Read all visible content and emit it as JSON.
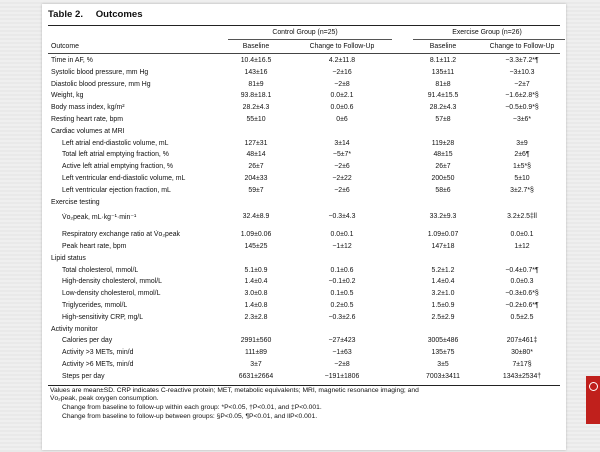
{
  "table": {
    "label": "Table 2.",
    "name": "Outcomes",
    "group_headers": [
      "Control Group (n=25)",
      "Exercise Group (n=26)"
    ],
    "column_headers": [
      "Outcome",
      "Baseline",
      "Change to Follow-Up",
      "Baseline",
      "Change to Follow-Up"
    ],
    "rows": [
      {
        "label": "Time in AF, %",
        "ind": false,
        "cells": [
          "10.4±16.5",
          "4.2±11.8",
          "8.1±11.2",
          "−3.3±7.2*¶"
        ]
      },
      {
        "label": "Systolic blood pressure, mm Hg",
        "ind": false,
        "cells": [
          "143±16",
          "−2±16",
          "135±11",
          "−3±10.3"
        ]
      },
      {
        "label": "Diastolic blood pressure, mm Hg",
        "ind": false,
        "cells": [
          "81±9",
          "−2±8",
          "81±8",
          "−2±7"
        ]
      },
      {
        "label": "Weight, kg",
        "ind": false,
        "cells": [
          "93.8±18.1",
          "0.0±2.1",
          "91.4±15.5",
          "−1.6±2.8*§"
        ]
      },
      {
        "label": "Body mass index, kg/m²",
        "ind": false,
        "cells": [
          "28.2±4.3",
          "0.0±0.6",
          "28.2±4.3",
          "−0.5±0.9*§"
        ]
      },
      {
        "label": "Resting heart rate, bpm",
        "ind": false,
        "cells": [
          "55±10",
          "0±6",
          "57±8",
          "−3±6*"
        ]
      },
      {
        "label": "Cardiac volumes at MRI",
        "ind": false,
        "cells": [
          "",
          "",
          "",
          ""
        ]
      },
      {
        "label": "Left atrial end-diastolic volume, mL",
        "ind": true,
        "cells": [
          "127±31",
          "3±14",
          "119±28",
          "3±9"
        ]
      },
      {
        "label": "Total left atrial emptying fraction, %",
        "ind": true,
        "cells": [
          "48±14",
          "−5±7*",
          "48±15",
          "2±6¶"
        ]
      },
      {
        "label": "Active left atrial emptying fraction, %",
        "ind": true,
        "cells": [
          "26±7",
          "−2±6",
          "26±7",
          "1±5*§"
        ]
      },
      {
        "label": "Left ventricular end-diastolic volume, mL",
        "ind": true,
        "cells": [
          "204±33",
          "−2±22",
          "200±50",
          "5±10"
        ]
      },
      {
        "label": "Left ventricular ejection fraction, mL",
        "ind": true,
        "cells": [
          "59±7",
          "−2±6",
          "58±6",
          "3±2.7*§"
        ]
      },
      {
        "label": "Exercise testing",
        "ind": false,
        "cells": [
          "",
          "",
          "",
          ""
        ]
      },
      {
        "label": "V̇o₂peak, mL·kg⁻¹·min⁻¹",
        "ind": true,
        "cells": [
          "32.4±8.9",
          "−0.3±4.3",
          "33.2±9.3",
          "3.2±2.5‡ll"
        ]
      },
      {
        "label": "Respiratory exchange ratio at V̇o₂peak",
        "ind": true,
        "cells": [
          "1.09±0.06",
          "0.0±0.1",
          "1.09±0.07",
          "0.0±0.1"
        ]
      },
      {
        "label": "Peak heart rate, bpm",
        "ind": true,
        "cells": [
          "145±25",
          "−1±12",
          "147±18",
          "1±12"
        ]
      },
      {
        "label": "Lipid status",
        "ind": false,
        "cells": [
          "",
          "",
          "",
          ""
        ]
      },
      {
        "label": "Total cholesterol, mmol/L",
        "ind": true,
        "cells": [
          "5.1±0.9",
          "0.1±0.6",
          "5.2±1.2",
          "−0.4±0.7*¶"
        ]
      },
      {
        "label": "High-density cholesterol, mmol/L",
        "ind": true,
        "cells": [
          "1.4±0.4",
          "−0.1±0.2",
          "1.4±0.4",
          "0.0±0.3"
        ]
      },
      {
        "label": "Low-density cholesterol, mmol/L",
        "ind": true,
        "cells": [
          "3.0±0.8",
          "0.1±0.5",
          "3.2±1.0",
          "−0.3±0.6*§"
        ]
      },
      {
        "label": "Triglycerides, mmol/L",
        "ind": true,
        "cells": [
          "1.4±0.8",
          "0.2±0.5",
          "1.5±0.9",
          "−0.2±0.6*¶"
        ]
      },
      {
        "label": "High-sensitivity CRP, mg/L",
        "ind": true,
        "cells": [
          "2.3±2.8",
          "−0.3±2.6",
          "2.5±2.9",
          "0.5±2.5"
        ]
      },
      {
        "label": "Activity monitor",
        "ind": false,
        "cells": [
          "",
          "",
          "",
          ""
        ]
      },
      {
        "label": "Calories per day",
        "ind": true,
        "cells": [
          "2991±560",
          "−27±423",
          "3005±486",
          "207±461‡"
        ]
      },
      {
        "label": "Activity >3 METs, min/d",
        "ind": true,
        "cells": [
          "111±89",
          "−1±63",
          "135±75",
          "30±80*"
        ]
      },
      {
        "label": "Activity >6 METs, min/d",
        "ind": true,
        "cells": [
          "3±7",
          "−2±8",
          "3±5",
          "7±17§"
        ]
      },
      {
        "label": "Steps per day",
        "ind": true,
        "cells": [
          "6631±2664",
          "−191±1806",
          "7003±3411",
          "1343±2534†"
        ]
      }
    ],
    "notes": [
      "Values are mean±SD. CRP indicates C-reactive protein; MET, metabolic equivalents; MRI, magnetic resonance imaging; and",
      "V̇o₂peak, peak oxygen consumption.",
      "Change from baseline to follow-up within each group: *P<0.05, †P<0.01, and ‡P<0.001.",
      "Change from baseline to follow-up between groups: §P<0.05, ¶P<0.01, and llP<0.001."
    ]
  }
}
